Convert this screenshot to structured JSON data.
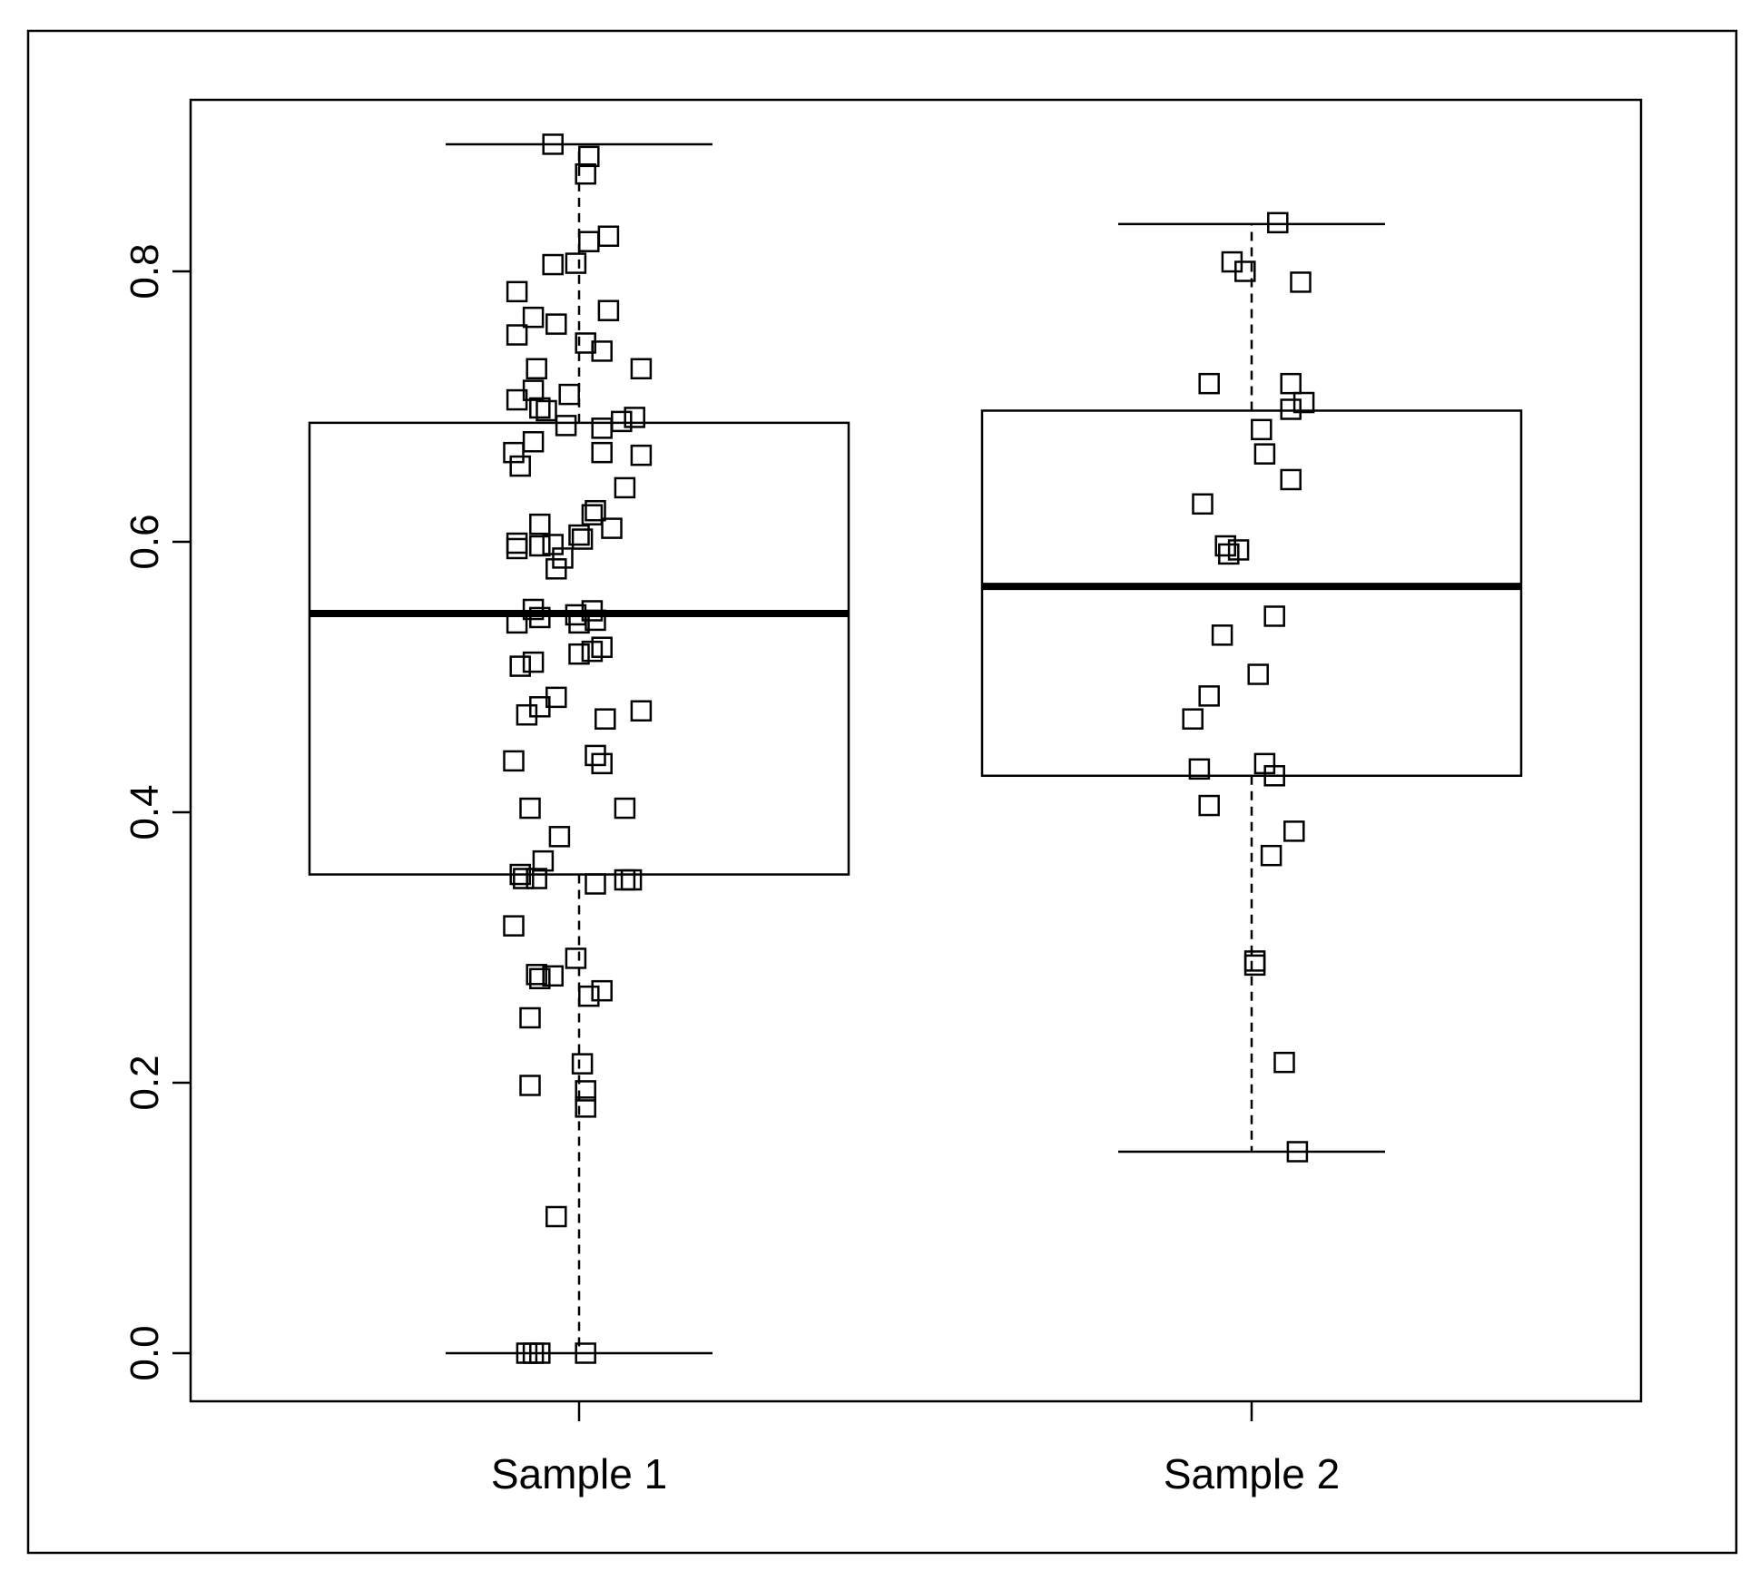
{
  "chart_data": {
    "type": "box",
    "title": "",
    "xlabel": "",
    "ylabel": "",
    "ylim": [
      -0.07,
      1.86
    ],
    "yticks": [
      0.0,
      0.2,
      0.4,
      0.6,
      0.8
    ],
    "ytick_labels": [
      "0.0",
      "0.2",
      "0.4",
      "0.6",
      "0.8"
    ],
    "categories": [
      "Sample 1",
      "Sample 2"
    ],
    "grid": false,
    "series": [
      {
        "stats": {
          "min": 0.0,
          "q1": 0.354,
          "median": 0.547,
          "q3": 0.688,
          "max": 0.894
        },
        "points": [
          {
            "jitter": -0.08,
            "y": 0.894
          },
          {
            "jitter": 0.03,
            "y": 0.885
          },
          {
            "jitter": 0.02,
            "y": 0.872
          },
          {
            "jitter": 0.09,
            "y": 0.826
          },
          {
            "jitter": 0.03,
            "y": 0.822
          },
          {
            "jitter": -0.08,
            "y": 0.805
          },
          {
            "jitter": -0.01,
            "y": 0.806
          },
          {
            "jitter": -0.19,
            "y": 0.785
          },
          {
            "jitter": 0.09,
            "y": 0.771
          },
          {
            "jitter": -0.14,
            "y": 0.766
          },
          {
            "jitter": -0.07,
            "y": 0.761
          },
          {
            "jitter": -0.19,
            "y": 0.753
          },
          {
            "jitter": 0.02,
            "y": 0.747
          },
          {
            "jitter": 0.07,
            "y": 0.741
          },
          {
            "jitter": -0.13,
            "y": 0.728
          },
          {
            "jitter": 0.19,
            "y": 0.728
          },
          {
            "jitter": -0.14,
            "y": 0.712
          },
          {
            "jitter": -0.03,
            "y": 0.709
          },
          {
            "jitter": -0.19,
            "y": 0.705
          },
          {
            "jitter": -0.12,
            "y": 0.699
          },
          {
            "jitter": -0.1,
            "y": 0.697
          },
          {
            "jitter": 0.17,
            "y": 0.692
          },
          {
            "jitter": 0.13,
            "y": 0.689
          },
          {
            "jitter": -0.04,
            "y": 0.686
          },
          {
            "jitter": 0.07,
            "y": 0.684
          },
          {
            "jitter": -0.14,
            "y": 0.674
          },
          {
            "jitter": -0.2,
            "y": 0.666
          },
          {
            "jitter": 0.07,
            "y": 0.666
          },
          {
            "jitter": 0.19,
            "y": 0.664
          },
          {
            "jitter": -0.18,
            "y": 0.656
          },
          {
            "jitter": 0.14,
            "y": 0.64
          },
          {
            "jitter": 0.05,
            "y": 0.623
          },
          {
            "jitter": 0.04,
            "y": 0.62
          },
          {
            "jitter": -0.12,
            "y": 0.613
          },
          {
            "jitter": 0.1,
            "y": 0.61
          },
          {
            "jitter": 0.0,
            "y": 0.605
          },
          {
            "jitter": 0.01,
            "y": 0.602
          },
          {
            "jitter": -0.19,
            "y": 0.599
          },
          {
            "jitter": -0.08,
            "y": 0.598
          },
          {
            "jitter": -0.12,
            "y": 0.597
          },
          {
            "jitter": -0.19,
            "y": 0.595
          },
          {
            "jitter": -0.05,
            "y": 0.588
          },
          {
            "jitter": -0.07,
            "y": 0.58
          },
          {
            "jitter": -0.14,
            "y": 0.55
          },
          {
            "jitter": 0.04,
            "y": 0.549
          },
          {
            "jitter": -0.01,
            "y": 0.546
          },
          {
            "jitter": -0.12,
            "y": 0.544
          },
          {
            "jitter": 0.05,
            "y": 0.542
          },
          {
            "jitter": -0.19,
            "y": 0.54
          },
          {
            "jitter": 0.0,
            "y": 0.54
          },
          {
            "jitter": 0.07,
            "y": 0.522
          },
          {
            "jitter": 0.04,
            "y": 0.519
          },
          {
            "jitter": 0.0,
            "y": 0.517
          },
          {
            "jitter": -0.14,
            "y": 0.511
          },
          {
            "jitter": -0.18,
            "y": 0.508
          },
          {
            "jitter": -0.07,
            "y": 0.485
          },
          {
            "jitter": -0.12,
            "y": 0.478
          },
          {
            "jitter": 0.19,
            "y": 0.475
          },
          {
            "jitter": -0.16,
            "y": 0.472
          },
          {
            "jitter": 0.08,
            "y": 0.469
          },
          {
            "jitter": 0.05,
            "y": 0.442
          },
          {
            "jitter": -0.2,
            "y": 0.438
          },
          {
            "jitter": 0.07,
            "y": 0.436
          },
          {
            "jitter": -0.15,
            "y": 0.403
          },
          {
            "jitter": 0.14,
            "y": 0.403
          },
          {
            "jitter": -0.06,
            "y": 0.382
          },
          {
            "jitter": -0.11,
            "y": 0.364
          },
          {
            "jitter": -0.18,
            "y": 0.354
          },
          {
            "jitter": -0.17,
            "y": 0.351
          },
          {
            "jitter": -0.13,
            "y": 0.351
          },
          {
            "jitter": 0.14,
            "y": 0.35
          },
          {
            "jitter": 0.16,
            "y": 0.35
          },
          {
            "jitter": 0.05,
            "y": 0.347
          },
          {
            "jitter": -0.2,
            "y": 0.316
          },
          {
            "jitter": -0.01,
            "y": 0.292
          },
          {
            "jitter": -0.13,
            "y": 0.28
          },
          {
            "jitter": -0.08,
            "y": 0.279
          },
          {
            "jitter": -0.12,
            "y": 0.277
          },
          {
            "jitter": 0.07,
            "y": 0.268
          },
          {
            "jitter": 0.03,
            "y": 0.264
          },
          {
            "jitter": -0.15,
            "y": 0.248
          },
          {
            "jitter": 0.01,
            "y": 0.214
          },
          {
            "jitter": -0.15,
            "y": 0.198
          },
          {
            "jitter": 0.02,
            "y": 0.194
          },
          {
            "jitter": 0.02,
            "y": 0.182
          },
          {
            "jitter": -0.07,
            "y": 0.101
          },
          {
            "jitter": -0.16,
            "y": 0.0
          },
          {
            "jitter": -0.14,
            "y": 0.0
          },
          {
            "jitter": -0.12,
            "y": 0.0
          },
          {
            "jitter": 0.02,
            "y": 0.0
          }
        ]
      },
      {
        "stats": {
          "min": 0.149,
          "q1": 0.427,
          "median": 0.567,
          "q3": 0.697,
          "max": 0.835
        },
        "points": [
          {
            "jitter": 0.08,
            "y": 0.836
          },
          {
            "jitter": -0.06,
            "y": 0.807
          },
          {
            "jitter": -0.02,
            "y": 0.8
          },
          {
            "jitter": 0.15,
            "y": 0.792
          },
          {
            "jitter": -0.13,
            "y": 0.717
          },
          {
            "jitter": 0.12,
            "y": 0.717
          },
          {
            "jitter": 0.16,
            "y": 0.703
          },
          {
            "jitter": 0.12,
            "y": 0.698
          },
          {
            "jitter": 0.03,
            "y": 0.683
          },
          {
            "jitter": 0.04,
            "y": 0.665
          },
          {
            "jitter": 0.12,
            "y": 0.646
          },
          {
            "jitter": -0.15,
            "y": 0.628
          },
          {
            "jitter": -0.08,
            "y": 0.597
          },
          {
            "jitter": -0.04,
            "y": 0.594
          },
          {
            "jitter": -0.07,
            "y": 0.591
          },
          {
            "jitter": 0.07,
            "y": 0.545
          },
          {
            "jitter": -0.09,
            "y": 0.531
          },
          {
            "jitter": 0.02,
            "y": 0.502
          },
          {
            "jitter": -0.13,
            "y": 0.486
          },
          {
            "jitter": -0.18,
            "y": 0.469
          },
          {
            "jitter": 0.04,
            "y": 0.436
          },
          {
            "jitter": -0.16,
            "y": 0.432
          },
          {
            "jitter": 0.07,
            "y": 0.427
          },
          {
            "jitter": -0.13,
            "y": 0.405
          },
          {
            "jitter": 0.13,
            "y": 0.386
          },
          {
            "jitter": 0.06,
            "y": 0.368
          },
          {
            "jitter": 0.01,
            "y": 0.29
          },
          {
            "jitter": 0.01,
            "y": 0.287
          },
          {
            "jitter": 0.1,
            "y": 0.215
          },
          {
            "jitter": 0.14,
            "y": 0.149
          }
        ]
      }
    ]
  }
}
